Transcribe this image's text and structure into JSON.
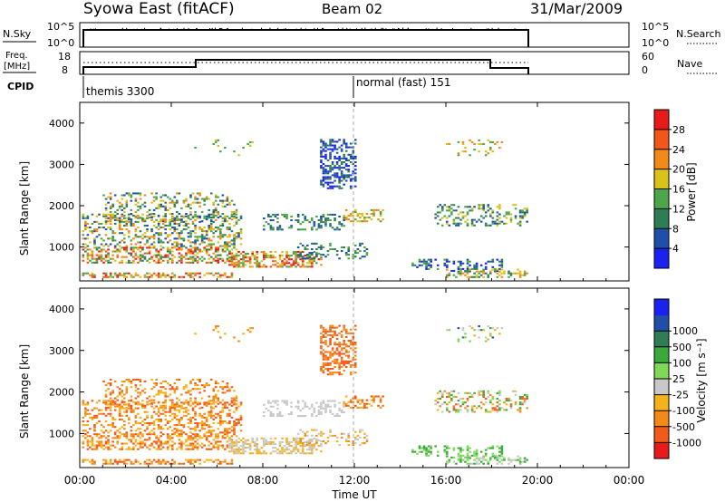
{
  "header": {
    "station": "Syowa East (fitACF)",
    "beam": "Beam 02",
    "date": "31/Mar/2009"
  },
  "colors": {
    "power_scale": [
      "#1a22f0",
      "#1f4fa8",
      "#2e7d55",
      "#4da64a",
      "#d9c21a",
      "#f28a1a",
      "#f2561a",
      "#e81a1a"
    ],
    "velocity_scale": [
      "#e81a1a",
      "#f25a1a",
      "#f28a1a",
      "#f5b21a",
      "#c8c8c8",
      "#7ed957",
      "#3aa83a",
      "#2e7d55",
      "#1f4fa8",
      "#1a22f0"
    ]
  },
  "panels": {
    "nsky": {
      "left_label": "N.Sky",
      "ticks_left": [
        "10^5",
        "10^0"
      ],
      "ticks_right": [
        "10^5",
        "10^0"
      ],
      "right_label": "N.Search"
    },
    "freq": {
      "left_label_1": "Freq.",
      "left_label_2": "[MHz]",
      "ticks_left": [
        "18",
        "8"
      ],
      "ticks_right": [
        "60",
        "0"
      ],
      "right_label": "Nave"
    },
    "cpid": {
      "label": "CPID",
      "mode_1": "themis 3300",
      "mode_2": "normal (fast) 151"
    }
  },
  "chart_data": [
    {
      "type": "heatmap",
      "name": "power",
      "ylabel": "Slant Range [km]",
      "yticks": [
        "1000",
        "2000",
        "3000",
        "4000"
      ],
      "ylim": [
        180,
        4500
      ],
      "colorbar_label": "Power [dB]",
      "colorbar_ticks": [
        "4",
        "8",
        "12",
        "16",
        "20",
        "24",
        "28"
      ],
      "colorbar_range": [
        0,
        30
      ]
    },
    {
      "type": "heatmap",
      "name": "velocity",
      "ylabel": "Slant Range [km]",
      "yticks": [
        "1000",
        "2000",
        "3000",
        "4000"
      ],
      "ylim": [
        180,
        4500
      ],
      "colorbar_label": "Velocity [m s⁻¹]",
      "colorbar_ticks": [
        "-1000",
        "-500",
        "-100",
        "-25",
        "25",
        "100",
        "500",
        "1000"
      ]
    }
  ],
  "time_axis": {
    "xlabel": "Time UT",
    "ticks": [
      "00:00",
      "04:00",
      "08:00",
      "12:00",
      "16:00",
      "20:00",
      "00:00"
    ],
    "xlim_hours": [
      0,
      24
    ],
    "operation_end_hour": 19.7,
    "mode_change_hour": 12.0
  }
}
